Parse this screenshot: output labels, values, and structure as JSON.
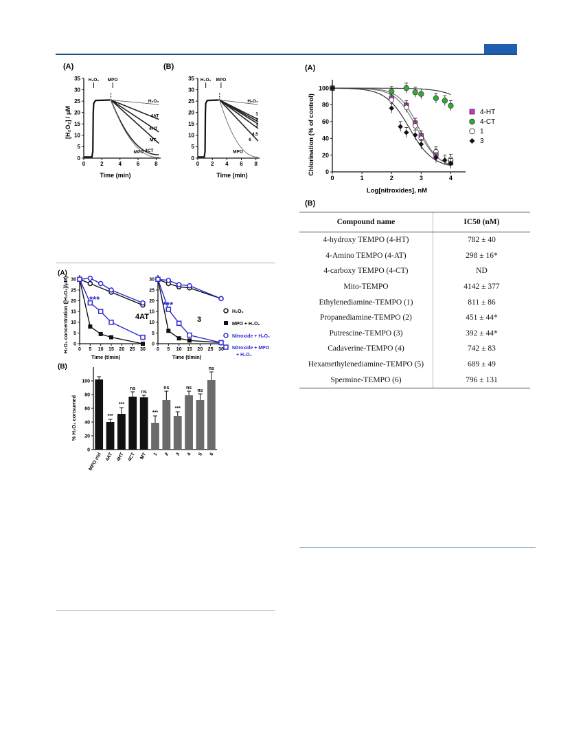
{
  "header": {
    "accent_color": "#1f5fb0"
  },
  "fig1": {
    "panel_a": {
      "label": "(A)",
      "y_label": "[H₂O₂] / μM",
      "x_label": "Time (min)",
      "y_ticks": [
        0,
        5,
        10,
        15,
        20,
        25,
        30,
        35
      ],
      "x_ticks": [
        0,
        2,
        4,
        6,
        8
      ],
      "markers": [
        "H₂O₂",
        "MPO"
      ],
      "curve_labels": [
        "H₂O₂",
        "4AT",
        "4HT",
        "MT",
        "4CT",
        "MPO"
      ]
    },
    "panel_b": {
      "label": "(B)",
      "y_ticks": [
        0,
        5,
        10,
        15,
        20,
        25,
        30,
        35
      ],
      "x_label": "Time (min)",
      "x_ticks": [
        0,
        2,
        4,
        6,
        8
      ],
      "markers": [
        "H₂O₂",
        "MPO"
      ],
      "curve_labels": [
        "H₂O₂",
        "1",
        "2",
        "3",
        "4,5",
        "6",
        "MPO"
      ]
    }
  },
  "fig2": {
    "panel_a": {
      "label": "(A)",
      "y_label": "H₂O₂ concentration ([H₂O₂]/μM)",
      "x_label": "Time (t/min)",
      "y_ticks": [
        0,
        5,
        10,
        15,
        20,
        25,
        30
      ],
      "x_ticks_left": [
        0,
        5,
        10,
        15,
        20,
        25,
        30
      ],
      "x_ticks_right": [
        0,
        5,
        10,
        15,
        20,
        25,
        30
      ],
      "plot_left_tag": "4AT",
      "plot_right_tag": "3",
      "significance": "***",
      "legend": [
        "H₂O₂",
        "MPO + H₂O₂",
        "Nitroxide + H₂O₂",
        "Nitroxide + MPO",
        "+ H₂O₂"
      ],
      "colors": {
        "blue": "#2b2bd6",
        "black": "#111111"
      }
    },
    "panel_b": {
      "label": "(B)",
      "y_label": "% H₂O₂ consumed",
      "y_ticks": [
        0,
        20,
        40,
        60,
        80,
        100
      ],
      "bar_colors": {
        "black": "#111111",
        "gray": "#6b6b6b"
      }
    }
  },
  "fig3": {
    "panel_a": {
      "label": "(A)",
      "y_label": "Chlorination (% of control)",
      "x_label": "Log[nitroxides], nM",
      "y_ticks": [
        0,
        20,
        40,
        60,
        80,
        100
      ],
      "x_ticks": [
        0,
        1,
        2,
        3,
        4
      ],
      "legend": [
        "4-HT",
        "4-CT",
        "1",
        "3"
      ],
      "colors": {
        "4-HT": "#cc33cc",
        "4-CT": "#33aa33"
      }
    },
    "panel_b": {
      "label": "(B)",
      "columns": [
        "Compound name",
        "IC50 (nM)"
      ],
      "rows": [
        [
          "4-hydroxy TEMPO (4-HT)",
          "782 ± 40"
        ],
        [
          "4-Amino TEMPO (4-AT)",
          "298 ± 16*"
        ],
        [
          "4-carboxy TEMPO (4-CT)",
          "ND"
        ],
        [
          "Mito-TEMPO",
          "4142 ± 377"
        ],
        [
          "Ethylenediamine-TEMPO (1)",
          "811  ± 86"
        ],
        [
          "Propanediamine-TEMPO (2)",
          "451 ± 44*"
        ],
        [
          "Putrescine-TEMPO (3)",
          "392 ± 44*"
        ],
        [
          "Cadaverine-TEMPO (4)",
          "742 ± 83"
        ],
        [
          "Hexamethylenediamine-TEMPO (5)",
          "689 ± 49"
        ],
        [
          "Spermine-TEMPO (6)",
          "796 ± 131"
        ]
      ]
    }
  },
  "chart_data": [
    {
      "type": "line",
      "title": "",
      "xlabel": "Time (min)",
      "ylabel": "[H₂O₂] / μM",
      "xlim": [
        0,
        8.5
      ],
      "ylim": [
        0,
        35
      ],
      "series": [
        {
          "name": "H₂O₂",
          "x": [
            3,
            8.3
          ],
          "values": [
            25.5,
            23.5
          ]
        },
        {
          "name": "4AT",
          "x": [
            3,
            8.3
          ],
          "values": [
            25.5,
            17
          ]
        },
        {
          "name": "4HT",
          "x": [
            3,
            8.3
          ],
          "values": [
            25.5,
            11.5
          ]
        },
        {
          "name": "MT",
          "x": [
            3,
            8.3
          ],
          "values": [
            25.5,
            6.5
          ]
        },
        {
          "name": "4CT",
          "x": [
            3,
            8.3
          ],
          "values": [
            25.5,
            1.5
          ]
        },
        {
          "name": "MPO",
          "x": [
            3,
            8.3
          ],
          "values": [
            25.5,
            0.3
          ]
        }
      ]
    },
    {
      "type": "line",
      "title": "",
      "xlabel": "Time (min)",
      "ylabel": "",
      "xlim": [
        0,
        8.5
      ],
      "ylim": [
        0,
        35
      ],
      "series": [
        {
          "name": "H₂O₂",
          "x": [
            3,
            8.3
          ],
          "values": [
            25.5,
            23.5
          ]
        },
        {
          "name": "1",
          "x": [
            3,
            8.3
          ],
          "values": [
            25.5,
            17
          ]
        },
        {
          "name": "2",
          "x": [
            3,
            8.3
          ],
          "values": [
            25.5,
            16
          ]
        },
        {
          "name": "3",
          "x": [
            3,
            8.3
          ],
          "values": [
            25.5,
            15
          ]
        },
        {
          "name": "4,5",
          "x": [
            3,
            8.3
          ],
          "values": [
            25.5,
            13
          ]
        },
        {
          "name": "6",
          "x": [
            3,
            8.3
          ],
          "values": [
            25.5,
            7.5
          ]
        },
        {
          "name": "MPO",
          "x": [
            3,
            8.3
          ],
          "values": [
            25.5,
            0.5
          ]
        }
      ]
    },
    {
      "type": "line",
      "title": "",
      "xlabel": "Time (t/min)",
      "ylabel": "H₂O₂ concentration ([H₂O₂]/μM)",
      "xlim": [
        0,
        30
      ],
      "ylim": [
        0,
        32
      ],
      "series": [
        {
          "name": "H₂O₂",
          "x": [
            0,
            5,
            15,
            30
          ],
          "values": [
            30,
            28,
            24,
            18
          ]
        },
        {
          "name": "MPO + H₂O₂",
          "x": [
            0,
            5,
            10,
            15,
            30
          ],
          "values": [
            30,
            8,
            4.5,
            3,
            0
          ]
        },
        {
          "name": "Nitroxide + H₂O₂",
          "x": [
            0,
            5,
            10,
            15,
            30
          ],
          "values": [
            30,
            30.5,
            28,
            25,
            19
          ]
        },
        {
          "name": "Nitroxide + MPO + H₂O₂",
          "x": [
            0,
            5,
            10,
            15,
            30
          ],
          "values": [
            30,
            19,
            15,
            10,
            3
          ]
        }
      ]
    },
    {
      "type": "line",
      "title": "",
      "xlabel": "Time (t/min)",
      "ylabel": "",
      "xlim": [
        0,
        30
      ],
      "ylim": [
        0,
        32
      ],
      "series": [
        {
          "name": "H₂O₂",
          "x": [
            0,
            5,
            10,
            15,
            30
          ],
          "values": [
            30,
            28,
            26.5,
            26,
            21
          ]
        },
        {
          "name": "MPO + H₂O₂",
          "x": [
            0,
            5,
            10,
            15,
            30
          ],
          "values": [
            30,
            6,
            2.5,
            1.5,
            0.5
          ]
        },
        {
          "name": "Nitroxide + H₂O₂",
          "x": [
            0,
            5,
            10,
            15,
            30
          ],
          "values": [
            30,
            29.5,
            27.5,
            27,
            21
          ]
        },
        {
          "name": "Nitroxide + MPO + H₂O₂",
          "x": [
            0,
            5,
            10,
            15,
            30
          ],
          "values": [
            30,
            16,
            9.5,
            4,
            0.5
          ]
        }
      ]
    },
    {
      "type": "bar",
      "title": "",
      "xlabel": "",
      "ylabel": "% H₂O₂ consumed",
      "ylim": [
        0,
        120
      ],
      "categories": [
        "MPO ctrl",
        "4AT",
        "4HT",
        "4CT",
        "MT",
        "1",
        "2",
        "3",
        "4",
        "5",
        "6"
      ],
      "values": [
        102,
        40,
        52,
        77,
        76,
        39,
        72,
        49,
        79,
        72,
        101
      ],
      "errors": [
        4,
        4,
        9,
        7,
        3,
        10,
        13,
        6,
        6,
        9,
        12
      ],
      "significance": [
        "",
        "***",
        "***",
        "ns",
        "ns",
        "***",
        "ns",
        "***",
        "ns",
        "ns",
        "ns"
      ]
    },
    {
      "type": "scatter",
      "title": "",
      "xlabel": "Log[nitroxides], nM",
      "ylabel": "Chlorination (% of control)",
      "xlim": [
        0,
        4.5
      ],
      "ylim": [
        0,
        110
      ],
      "series": [
        {
          "name": "4-HT",
          "x": [
            0,
            2,
            2.5,
            2.8,
            3,
            3.5,
            4
          ],
          "values": [
            100,
            88,
            79,
            58,
            43,
            21,
            11
          ]
        },
        {
          "name": "4-CT",
          "x": [
            0,
            2,
            2.5,
            2.8,
            3,
            3.5,
            3.8,
            4
          ],
          "values": [
            100,
            96,
            100,
            95,
            93,
            88,
            85,
            79
          ]
        },
        {
          "name": "1",
          "x": [
            0,
            2,
            2.5,
            2.8,
            3,
            3.5,
            4
          ],
          "values": [
            100,
            86,
            77,
            55,
            40,
            24,
            15
          ]
        },
        {
          "name": "3",
          "x": [
            0,
            2,
            2.3,
            2.5,
            2.8,
            3,
            3.5,
            3.8,
            4
          ],
          "values": [
            100,
            76,
            54,
            47,
            44,
            33,
            17,
            14,
            10
          ]
        }
      ]
    }
  ]
}
